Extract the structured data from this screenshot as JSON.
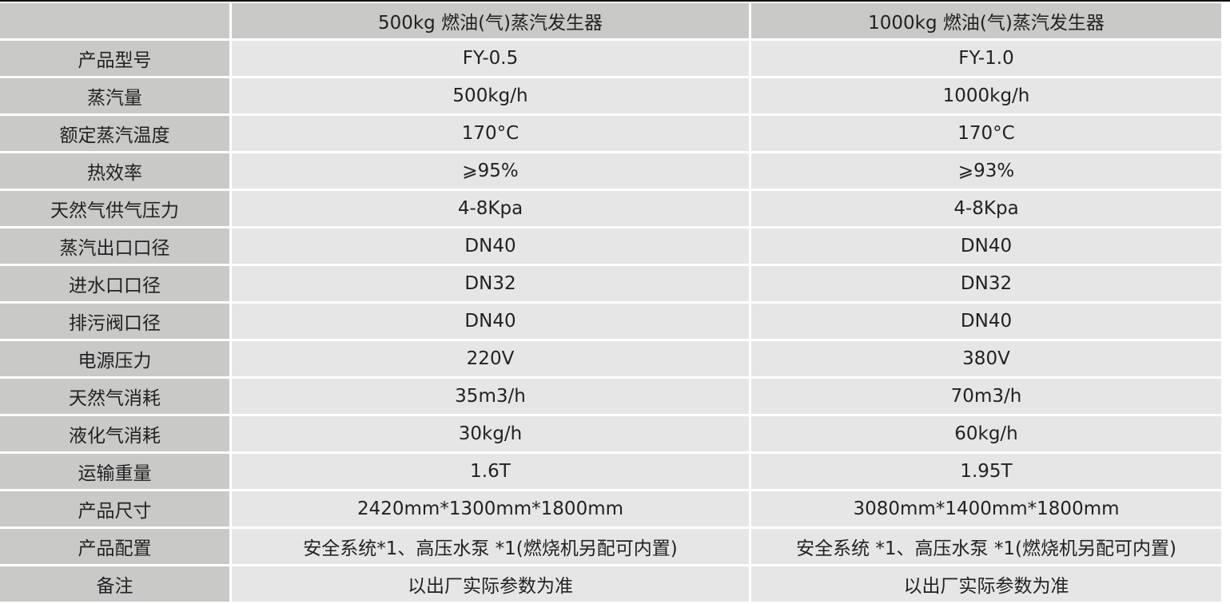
{
  "header": [
    "",
    "500kg 燃油(气)蒸汽发生器",
    "1000kg 燃油(气)蒸汽发生器"
  ],
  "rows": [
    {
      "label": "产品型号",
      "a": "FY-0.5",
      "b": "FY-1.0"
    },
    {
      "label": "蒸汽量",
      "a": "500kg/h",
      "b": "1000kg/h"
    },
    {
      "label": "额定蒸汽温度",
      "a": "170°C",
      "b": "170°C"
    },
    {
      "label": "热效率",
      "a": "⩾95%",
      "b": "⩾93%"
    },
    {
      "label": "天然气供气压力",
      "a": "4-8Kpa",
      "b": "4-8Kpa"
    },
    {
      "label": "蒸汽出口口径",
      "a": "DN40",
      "b": "DN40"
    },
    {
      "label": "进水口口径",
      "a": "DN32",
      "b": "DN32"
    },
    {
      "label": "排污阀口径",
      "a": "DN40",
      "b": "DN40"
    },
    {
      "label": "电源压力",
      "a": "220V",
      "b": "380V"
    },
    {
      "label": "天然气消耗",
      "a": "35m3/h",
      "b": "70m3/h"
    },
    {
      "label": "液化气消耗",
      "a": "30kg/h",
      "b": "60kg/h"
    },
    {
      "label": "运输重量",
      "a": "1.6T",
      "b": "1.95T"
    },
    {
      "label": "产品尺寸",
      "a": "2420mm*1300mm*1800mm",
      "b": "3080mm*1400mm*1800mm"
    },
    {
      "label": "产品配置",
      "a": "安全系统*1、高压水泵 *1(燃烧机另配可内置)",
      "b": "安全系统 *1、高压水泵 *1(燃烧机另配可内置)"
    },
    {
      "label": "备注",
      "a": "以出厂实际参数为准",
      "b": "以出厂实际参数为准"
    }
  ]
}
